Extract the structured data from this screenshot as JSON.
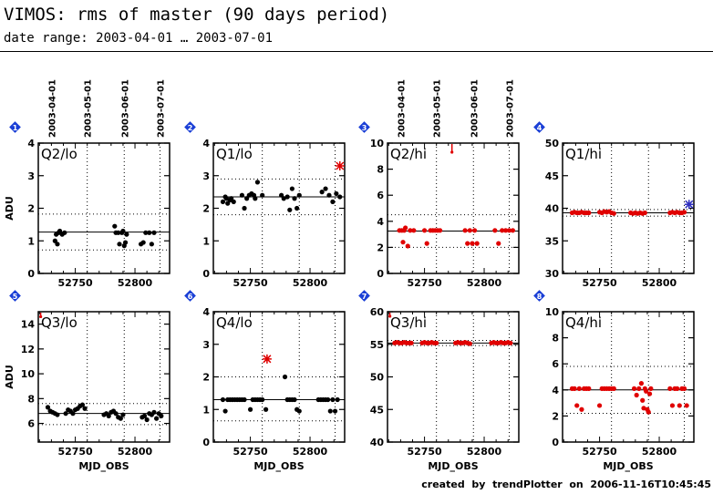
{
  "title": "VIMOS: rms of master (90 days period)",
  "subtitle": "date range: 2003-04-01 … 2003-07-01",
  "credit": "created  by  trendPlotter  on  2006-11-16T10:45:45",
  "colors": {
    "black_points": "#000000",
    "red_points": "#e00000",
    "outlier_blue": "#3030c0",
    "badge": "#1a3fd6"
  },
  "chart_data": [
    {
      "panel": "1",
      "type": "scatter",
      "title": "Q2/lo",
      "ylabel": "ADU",
      "xlabel": "",
      "xlim": [
        52719,
        52829
      ],
      "ylim": [
        0,
        4
      ],
      "yticks": [
        0,
        1,
        2,
        3,
        4
      ],
      "xticks": [
        52750,
        52800
      ],
      "top_date_ticks": [
        {
          "x": 52730,
          "label": "2003-04-01"
        },
        {
          "x": 52760,
          "label": "2003-05-01"
        },
        {
          "x": 52791,
          "label": "2003-06-01"
        },
        {
          "x": 52821,
          "label": "2003-07-01"
        }
      ],
      "mean": 1.27,
      "band": [
        0.72,
        1.82
      ],
      "color": "black",
      "points": [
        [
          52733,
          1.0
        ],
        [
          52734,
          1.2
        ],
        [
          52735,
          0.9
        ],
        [
          52736,
          1.25
        ],
        [
          52737,
          1.3
        ],
        [
          52739,
          1.2
        ],
        [
          52741,
          1.25
        ],
        [
          52783,
          1.45
        ],
        [
          52784,
          1.25
        ],
        [
          52786,
          1.25
        ],
        [
          52787,
          0.9
        ],
        [
          52789,
          1.25
        ],
        [
          52790,
          1.3
        ],
        [
          52791,
          0.85
        ],
        [
          52792,
          0.95
        ],
        [
          52793,
          1.2
        ],
        [
          52805,
          0.9
        ],
        [
          52807,
          0.95
        ],
        [
          52809,
          1.25
        ],
        [
          52812,
          1.25
        ],
        [
          52814,
          0.9
        ],
        [
          52816,
          1.25
        ]
      ]
    },
    {
      "panel": "2",
      "type": "scatter",
      "title": "Q1/lo",
      "ylabel": "",
      "xlabel": "",
      "xlim": [
        52719,
        52829
      ],
      "ylim": [
        0,
        4
      ],
      "yticks": [
        0,
        1,
        2,
        3,
        4
      ],
      "xticks": [
        52750,
        52800
      ],
      "top_date_ticks": [],
      "mean": 2.35,
      "band": [
        1.8,
        2.9
      ],
      "color": "black",
      "outlier": {
        "x": 52825,
        "y": 3.3,
        "color": "red"
      },
      "points": [
        [
          52727,
          2.2
        ],
        [
          52729,
          2.35
        ],
        [
          52730,
          2.3
        ],
        [
          52731,
          2.15
        ],
        [
          52733,
          2.25
        ],
        [
          52734,
          2.3
        ],
        [
          52736,
          2.2
        ],
        [
          52743,
          2.4
        ],
        [
          52745,
          2.0
        ],
        [
          52747,
          2.3
        ],
        [
          52749,
          2.4
        ],
        [
          52751,
          2.45
        ],
        [
          52753,
          2.4
        ],
        [
          52754,
          2.3
        ],
        [
          52756,
          2.8
        ],
        [
          52760,
          2.4
        ],
        [
          52776,
          2.4
        ],
        [
          52778,
          2.3
        ],
        [
          52781,
          2.35
        ],
        [
          52783,
          1.95
        ],
        [
          52785,
          2.6
        ],
        [
          52787,
          2.3
        ],
        [
          52789,
          2.0
        ],
        [
          52791,
          2.4
        ],
        [
          52810,
          2.5
        ],
        [
          52813,
          2.6
        ],
        [
          52816,
          2.4
        ],
        [
          52819,
          2.2
        ],
        [
          52822,
          2.45
        ],
        [
          52825,
          2.35
        ]
      ]
    },
    {
      "panel": "3",
      "type": "scatter",
      "title": "Q2/hi",
      "ylabel": "",
      "xlabel": "",
      "xlim": [
        52719,
        52829
      ],
      "ylim": [
        0,
        10
      ],
      "yticks": [
        0,
        2,
        4,
        6,
        8,
        10
      ],
      "xticks": [
        52750,
        52800
      ],
      "top_date_ticks": [
        {
          "x": 52730,
          "label": "2003-04-01"
        },
        {
          "x": 52760,
          "label": "2003-05-01"
        },
        {
          "x": 52791,
          "label": "2003-06-01"
        },
        {
          "x": 52821,
          "label": "2003-07-01"
        }
      ],
      "mean": 3.25,
      "band": [
        2.0,
        4.5
      ],
      "color": "red",
      "outlier": {
        "x": 52773,
        "y": 9.3,
        "color": "red",
        "arrow": true
      },
      "points": [
        [
          52729,
          3.3
        ],
        [
          52731,
          3.3
        ],
        [
          52732,
          2.4
        ],
        [
          52733,
          3.3
        ],
        [
          52734,
          3.5
        ],
        [
          52736,
          2.1
        ],
        [
          52738,
          3.3
        ],
        [
          52741,
          3.3
        ],
        [
          52750,
          3.3
        ],
        [
          52752,
          2.3
        ],
        [
          52755,
          3.3
        ],
        [
          52757,
          3.3
        ],
        [
          52759,
          3.3
        ],
        [
          52761,
          3.3
        ],
        [
          52763,
          3.3
        ],
        [
          52784,
          3.3
        ],
        [
          52786,
          2.3
        ],
        [
          52788,
          3.3
        ],
        [
          52790,
          2.3
        ],
        [
          52792,
          3.3
        ],
        [
          52794,
          2.3
        ],
        [
          52809,
          3.3
        ],
        [
          52812,
          2.3
        ],
        [
          52815,
          3.3
        ],
        [
          52818,
          3.3
        ],
        [
          52821,
          3.3
        ],
        [
          52824,
          3.3
        ]
      ]
    },
    {
      "panel": "4",
      "type": "scatter",
      "title": "Q1/hi",
      "ylabel": "",
      "xlabel": "",
      "xlim": [
        52719,
        52829
      ],
      "ylim": [
        30,
        50
      ],
      "yticks": [
        30,
        35,
        40,
        45,
        50
      ],
      "xticks": [
        52750,
        52800
      ],
      "top_date_ticks": [],
      "mean": 39.3,
      "band": [
        38.8,
        39.8
      ],
      "color": "red",
      "outlier": {
        "x": 52825,
        "y": 40.6,
        "color": "blue"
      },
      "points": [
        [
          52727,
          39.3
        ],
        [
          52729,
          39.4
        ],
        [
          52731,
          39.3
        ],
        [
          52733,
          39.3
        ],
        [
          52735,
          39.4
        ],
        [
          52737,
          39.3
        ],
        [
          52739,
          39.3
        ],
        [
          52741,
          39.3
        ],
        [
          52750,
          39.4
        ],
        [
          52752,
          39.3
        ],
        [
          52754,
          39.5
        ],
        [
          52756,
          39.4
        ],
        [
          52758,
          39.5
        ],
        [
          52760,
          39.3
        ],
        [
          52762,
          39.2
        ],
        [
          52776,
          39.3
        ],
        [
          52778,
          39.2
        ],
        [
          52780,
          39.3
        ],
        [
          52782,
          39.2
        ],
        [
          52784,
          39.3
        ],
        [
          52786,
          39.2
        ],
        [
          52788,
          39.3
        ],
        [
          52809,
          39.3
        ],
        [
          52811,
          39.4
        ],
        [
          52813,
          39.3
        ],
        [
          52815,
          39.4
        ],
        [
          52817,
          39.3
        ],
        [
          52819,
          39.3
        ],
        [
          52821,
          39.4
        ]
      ]
    },
    {
      "panel": "5",
      "type": "scatter",
      "title": "Q3/lo",
      "ylabel": "ADU",
      "xlabel": "MJD_OBS",
      "xlim": [
        52719,
        52829
      ],
      "ylim": [
        4.5,
        15
      ],
      "yticks": [
        6,
        8,
        10,
        12,
        14
      ],
      "xticks": [
        52750,
        52800
      ],
      "top_date_ticks": [],
      "mean": 6.8,
      "band": [
        5.9,
        7.6
      ],
      "color": "black",
      "outlier": {
        "x": 52721,
        "y": 14.6,
        "color": "red",
        "arrow": true
      },
      "points": [
        [
          52727,
          7.3
        ],
        [
          52729,
          7.0
        ],
        [
          52731,
          6.9
        ],
        [
          52733,
          6.8
        ],
        [
          52735,
          6.7
        ],
        [
          52742,
          6.8
        ],
        [
          52744,
          7.1
        ],
        [
          52746,
          7.0
        ],
        [
          52748,
          6.8
        ],
        [
          52750,
          7.1
        ],
        [
          52752,
          7.2
        ],
        [
          52754,
          7.4
        ],
        [
          52756,
          7.5
        ],
        [
          52758,
          7.2
        ],
        [
          52774,
          6.7
        ],
        [
          52776,
          6.8
        ],
        [
          52778,
          6.6
        ],
        [
          52780,
          6.9
        ],
        [
          52782,
          7.0
        ],
        [
          52784,
          6.8
        ],
        [
          52786,
          6.5
        ],
        [
          52788,
          6.4
        ],
        [
          52790,
          6.7
        ],
        [
          52806,
          6.5
        ],
        [
          52808,
          6.6
        ],
        [
          52810,
          6.3
        ],
        [
          52812,
          6.8
        ],
        [
          52814,
          6.7
        ],
        [
          52816,
          6.9
        ],
        [
          52818,
          6.4
        ],
        [
          52820,
          6.8
        ],
        [
          52822,
          6.6
        ]
      ]
    },
    {
      "panel": "6",
      "type": "scatter",
      "title": "Q4/lo",
      "ylabel": "",
      "xlabel": "MJD_OBS",
      "xlim": [
        52719,
        52829
      ],
      "ylim": [
        0,
        4
      ],
      "yticks": [
        0,
        1,
        2,
        3,
        4
      ],
      "xticks": [
        52750,
        52800
      ],
      "top_date_ticks": [],
      "mean": 1.3,
      "band": [
        0.65,
        2.0
      ],
      "color": "black",
      "outlier": {
        "x": 52764,
        "y": 2.55,
        "color": "red"
      },
      "points": [
        [
          52727,
          1.3
        ],
        [
          52729,
          0.95
        ],
        [
          52731,
          1.3
        ],
        [
          52733,
          1.3
        ],
        [
          52735,
          1.3
        ],
        [
          52737,
          1.3
        ],
        [
          52739,
          1.3
        ],
        [
          52741,
          1.3
        ],
        [
          52743,
          1.3
        ],
        [
          52745,
          1.3
        ],
        [
          52750,
          1.0
        ],
        [
          52752,
          1.3
        ],
        [
          52754,
          1.3
        ],
        [
          52756,
          1.3
        ],
        [
          52758,
          1.3
        ],
        [
          52760,
          1.3
        ],
        [
          52763,
          1.0
        ],
        [
          52779,
          2.0
        ],
        [
          52781,
          1.3
        ],
        [
          52783,
          1.3
        ],
        [
          52785,
          1.3
        ],
        [
          52787,
          1.3
        ],
        [
          52789,
          1.0
        ],
        [
          52791,
          0.95
        ],
        [
          52807,
          1.3
        ],
        [
          52809,
          1.3
        ],
        [
          52811,
          1.3
        ],
        [
          52813,
          1.3
        ],
        [
          52815,
          1.3
        ],
        [
          52817,
          0.95
        ],
        [
          52819,
          1.3
        ],
        [
          52821,
          0.95
        ],
        [
          52823,
          1.3
        ]
      ]
    },
    {
      "panel": "7",
      "type": "scatter",
      "title": "Q3/hi",
      "ylabel": "",
      "xlabel": "MJD_OBS",
      "xlim": [
        52719,
        52829
      ],
      "ylim": [
        40,
        60
      ],
      "yticks": [
        40,
        45,
        50,
        55,
        60
      ],
      "xticks": [
        52750,
        52800
      ],
      "top_date_ticks": [],
      "mean": 55.2,
      "band": [
        54.8,
        55.6
      ],
      "color": "red",
      "outlier": {
        "x": 52721,
        "y": 59.3,
        "color": "red",
        "arrow": true
      },
      "points": [
        [
          52725,
          55.2
        ],
        [
          52727,
          55.3
        ],
        [
          52729,
          55.2
        ],
        [
          52731,
          55.2
        ],
        [
          52733,
          55.3
        ],
        [
          52735,
          55.2
        ],
        [
          52737,
          55.2
        ],
        [
          52739,
          55.2
        ],
        [
          52748,
          55.2
        ],
        [
          52750,
          55.3
        ],
        [
          52752,
          55.2
        ],
        [
          52754,
          55.2
        ],
        [
          52756,
          55.3
        ],
        [
          52758,
          55.2
        ],
        [
          52760,
          55.2
        ],
        [
          52776,
          55.2
        ],
        [
          52778,
          55.3
        ],
        [
          52780,
          55.2
        ],
        [
          52782,
          55.2
        ],
        [
          52784,
          55.3
        ],
        [
          52786,
          55.2
        ],
        [
          52788,
          55.1
        ],
        [
          52806,
          55.2
        ],
        [
          52808,
          55.3
        ],
        [
          52810,
          55.2
        ],
        [
          52812,
          55.2
        ],
        [
          52814,
          55.3
        ],
        [
          52816,
          55.2
        ],
        [
          52818,
          55.2
        ],
        [
          52820,
          55.3
        ],
        [
          52822,
          55.2
        ]
      ]
    },
    {
      "panel": "8",
      "type": "scatter",
      "title": "Q4/hi",
      "ylabel": "",
      "xlabel": "MJD_OBS",
      "xlim": [
        52719,
        52829
      ],
      "ylim": [
        0,
        10
      ],
      "yticks": [
        0,
        2,
        4,
        6,
        8,
        10
      ],
      "xticks": [
        52750,
        52800
      ],
      "top_date_ticks": [],
      "mean": 4.0,
      "band": [
        2.2,
        5.8
      ],
      "color": "red",
      "points": [
        [
          52727,
          4.1
        ],
        [
          52729,
          4.1
        ],
        [
          52731,
          2.8
        ],
        [
          52733,
          4.1
        ],
        [
          52735,
          2.5
        ],
        [
          52737,
          4.1
        ],
        [
          52739,
          4.1
        ],
        [
          52741,
          4.1
        ],
        [
          52750,
          2.8
        ],
        [
          52752,
          4.1
        ],
        [
          52754,
          4.1
        ],
        [
          52756,
          4.1
        ],
        [
          52758,
          4.1
        ],
        [
          52760,
          4.1
        ],
        [
          52762,
          4.1
        ],
        [
          52779,
          4.1
        ],
        [
          52781,
          3.6
        ],
        [
          52783,
          4.1
        ],
        [
          52785,
          4.5
        ],
        [
          52786,
          3.2
        ],
        [
          52787,
          2.6
        ],
        [
          52788,
          4.1
        ],
        [
          52789,
          3.9
        ],
        [
          52790,
          2.5
        ],
        [
          52791,
          2.3
        ],
        [
          52792,
          3.7
        ],
        [
          52793,
          4.1
        ],
        [
          52809,
          4.1
        ],
        [
          52811,
          2.8
        ],
        [
          52813,
          4.1
        ],
        [
          52815,
          4.1
        ],
        [
          52817,
          2.8
        ],
        [
          52819,
          4.1
        ],
        [
          52821,
          4.1
        ],
        [
          52823,
          2.8
        ]
      ]
    }
  ]
}
